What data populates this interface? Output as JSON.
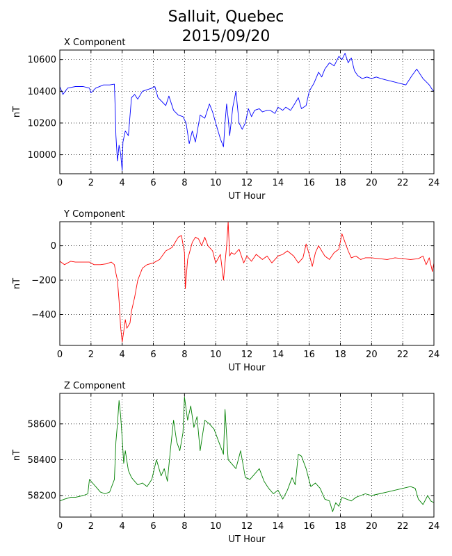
{
  "figure": {
    "title_line1": "Salluit, Quebec",
    "title_line2": "2015/09/20"
  },
  "chart_data": [
    {
      "type": "line",
      "title": "X Component",
      "xlabel": "UT Hour",
      "ylabel": "nT",
      "xlim": [
        0,
        24
      ],
      "ylim": [
        9880,
        10660
      ],
      "xticks": [
        0,
        2,
        4,
        6,
        8,
        10,
        12,
        14,
        16,
        18,
        20,
        22,
        24
      ],
      "yticks": [
        10000,
        10200,
        10400,
        10600
      ],
      "grid": true,
      "color": "#0000ff",
      "series": [
        {
          "x": [
            0,
            0.2,
            0.5,
            1,
            1.5,
            1.9,
            2.0,
            2.3,
            2.8,
            3.2,
            3.5,
            3.55,
            3.6,
            3.7,
            3.8,
            3.9,
            4.0,
            4.05,
            4.2,
            4.4,
            4.6,
            4.8,
            5.0,
            5.3,
            5.6,
            5.9,
            6.1,
            6.3,
            6.5,
            6.8,
            7.0,
            7.3,
            7.6,
            7.9,
            8.1,
            8.3,
            8.5,
            8.7,
            9.0,
            9.3,
            9.6,
            9.8,
            10.0,
            10.3,
            10.5,
            10.6,
            10.7,
            10.8,
            10.9,
            11.1,
            11.3,
            11.5,
            11.7,
            11.9,
            12.1,
            12.3,
            12.5,
            12.8,
            13.0,
            13.3,
            13.5,
            13.8,
            14.0,
            14.3,
            14.5,
            14.8,
            15.0,
            15.3,
            15.5,
            15.8,
            16.0,
            16.3,
            16.6,
            16.8,
            17.0,
            17.3,
            17.6,
            17.9,
            18.1,
            18.3,
            18.5,
            18.7,
            18.9,
            19.1,
            19.4,
            19.7,
            20.0,
            20.3,
            20.6,
            21.0,
            21.4,
            21.8,
            22.2,
            22.6,
            22.9,
            23.1,
            23.3,
            23.5,
            23.7,
            23.9,
            24.0
          ],
          "y": [
            10430,
            10380,
            10420,
            10430,
            10430,
            10420,
            10390,
            10420,
            10440,
            10440,
            10445,
            10300,
            10120,
            9960,
            10060,
            10010,
            9900,
            10080,
            10150,
            10120,
            10360,
            10380,
            10350,
            10400,
            10410,
            10420,
            10430,
            10360,
            10340,
            10310,
            10370,
            10280,
            10250,
            10240,
            10200,
            10070,
            10150,
            10080,
            10250,
            10230,
            10320,
            10270,
            10200,
            10100,
            10050,
            10200,
            10320,
            10230,
            10120,
            10300,
            10400,
            10200,
            10160,
            10200,
            10290,
            10240,
            10280,
            10290,
            10270,
            10280,
            10280,
            10260,
            10300,
            10280,
            10300,
            10280,
            10310,
            10360,
            10290,
            10310,
            10400,
            10450,
            10520,
            10490,
            10540,
            10580,
            10560,
            10620,
            10600,
            10640,
            10580,
            10610,
            10530,
            10500,
            10480,
            10490,
            10480,
            10490,
            10480,
            10470,
            10460,
            10450,
            10440,
            10500,
            10540,
            10510,
            10480,
            10460,
            10440,
            10410,
            10400
          ]
        }
      ]
    },
    {
      "type": "line",
      "title": "Y Component",
      "xlabel": "UT Hour",
      "ylabel": "nT",
      "xlim": [
        0,
        24
      ],
      "ylim": [
        -580,
        140
      ],
      "xticks": [
        0,
        2,
        4,
        6,
        8,
        10,
        12,
        14,
        16,
        18,
        20,
        22,
        24
      ],
      "yticks": [
        0,
        -200,
        -400
      ],
      "grid": true,
      "color": "#ff0000",
      "series": [
        {
          "x": [
            0,
            0.3,
            0.7,
            1.0,
            1.5,
            1.9,
            2.2,
            2.6,
            3.0,
            3.3,
            3.5,
            3.6,
            3.7,
            3.8,
            3.9,
            4.0,
            4.1,
            4.2,
            4.3,
            4.5,
            4.6,
            4.8,
            5.0,
            5.3,
            5.6,
            6.0,
            6.4,
            6.8,
            7.2,
            7.6,
            7.8,
            8.0,
            8.05,
            8.2,
            8.5,
            8.7,
            8.9,
            9.1,
            9.3,
            9.5,
            9.8,
            10.0,
            10.3,
            10.5,
            10.6,
            10.7,
            10.8,
            10.9,
            11.0,
            11.2,
            11.5,
            11.8,
            12.0,
            12.3,
            12.6,
            13.0,
            13.3,
            13.6,
            14.0,
            14.3,
            14.6,
            15.0,
            15.3,
            15.6,
            15.8,
            16.0,
            16.2,
            16.4,
            16.6,
            16.8,
            17.0,
            17.3,
            17.6,
            17.9,
            18.1,
            18.3,
            18.5,
            18.7,
            19.0,
            19.3,
            19.6,
            20.0,
            20.5,
            21.0,
            21.5,
            22.0,
            22.5,
            23.0,
            23.3,
            23.5,
            23.7,
            23.9,
            24.0
          ],
          "y": [
            -90,
            -110,
            -90,
            -95,
            -95,
            -95,
            -110,
            -110,
            -105,
            -95,
            -110,
            -160,
            -200,
            -320,
            -470,
            -560,
            -500,
            -430,
            -480,
            -450,
            -380,
            -300,
            -200,
            -130,
            -110,
            -100,
            -80,
            -30,
            -10,
            50,
            60,
            -40,
            -250,
            -80,
            20,
            50,
            40,
            0,
            50,
            0,
            -30,
            -100,
            -50,
            -200,
            -100,
            0,
            140,
            -60,
            -40,
            -50,
            -20,
            -100,
            -60,
            -90,
            -50,
            -80,
            -60,
            -100,
            -60,
            -50,
            -30,
            -60,
            -100,
            -70,
            10,
            -50,
            -120,
            -40,
            0,
            -30,
            -60,
            -80,
            -40,
            -20,
            70,
            20,
            -30,
            -70,
            -60,
            -80,
            -70,
            -70,
            -75,
            -80,
            -70,
            -75,
            -80,
            -75,
            -60,
            -110,
            -70,
            -150,
            -100
          ]
        }
      ]
    },
    {
      "type": "line",
      "title": "Z Component",
      "xlabel": "UT Hour",
      "ylabel": "nT",
      "xlim": [
        0,
        24
      ],
      "ylim": [
        58080,
        58770
      ],
      "xticks": [
        0,
        2,
        4,
        6,
        8,
        10,
        12,
        14,
        16,
        18,
        20,
        22,
        24
      ],
      "yticks": [
        58200,
        58400,
        58600
      ],
      "grid": true,
      "color": "#008000",
      "series": [
        {
          "x": [
            0,
            0.3,
            0.7,
            1.0,
            1.5,
            1.8,
            1.9,
            2.1,
            2.3,
            2.6,
            2.9,
            3.2,
            3.5,
            3.6,
            3.7,
            3.8,
            3.9,
            4.0,
            4.1,
            4.2,
            4.4,
            4.6,
            4.8,
            5.0,
            5.3,
            5.6,
            5.9,
            6.2,
            6.5,
            6.7,
            6.9,
            7.1,
            7.3,
            7.5,
            7.7,
            7.9,
            8.0,
            8.2,
            8.4,
            8.6,
            8.8,
            9.0,
            9.3,
            9.6,
            9.9,
            10.2,
            10.5,
            10.6,
            10.8,
            11.0,
            11.3,
            11.6,
            11.9,
            12.2,
            12.5,
            12.8,
            13.1,
            13.4,
            13.7,
            14.0,
            14.3,
            14.6,
            14.9,
            15.1,
            15.3,
            15.5,
            15.8,
            16.1,
            16.4,
            16.7,
            17.0,
            17.3,
            17.5,
            17.7,
            17.9,
            18.1,
            18.4,
            18.7,
            19.0,
            19.3,
            19.6,
            20.0,
            20.5,
            21.0,
            21.5,
            22.0,
            22.5,
            22.8,
            23.0,
            23.3,
            23.6,
            23.8,
            24.0
          ],
          "y": [
            58170,
            58180,
            58190,
            58190,
            58200,
            58210,
            58290,
            58270,
            58250,
            58220,
            58210,
            58220,
            58290,
            58500,
            58600,
            58730,
            58650,
            58520,
            58380,
            58450,
            58340,
            58300,
            58280,
            58260,
            58270,
            58250,
            58290,
            58400,
            58310,
            58350,
            58280,
            58460,
            58620,
            58500,
            58450,
            58550,
            58750,
            58620,
            58700,
            58580,
            58640,
            58450,
            58620,
            58600,
            58570,
            58500,
            58430,
            58680,
            58400,
            58380,
            58350,
            58450,
            58300,
            58290,
            58320,
            58350,
            58280,
            58240,
            58210,
            58230,
            58180,
            58230,
            58300,
            58260,
            58430,
            58420,
            58350,
            58250,
            58270,
            58240,
            58180,
            58170,
            58110,
            58160,
            58140,
            58190,
            58180,
            58170,
            58190,
            58200,
            58210,
            58200,
            58210,
            58220,
            58230,
            58240,
            58250,
            58240,
            58180,
            58150,
            58200,
            58170,
            58160
          ]
        }
      ]
    }
  ]
}
